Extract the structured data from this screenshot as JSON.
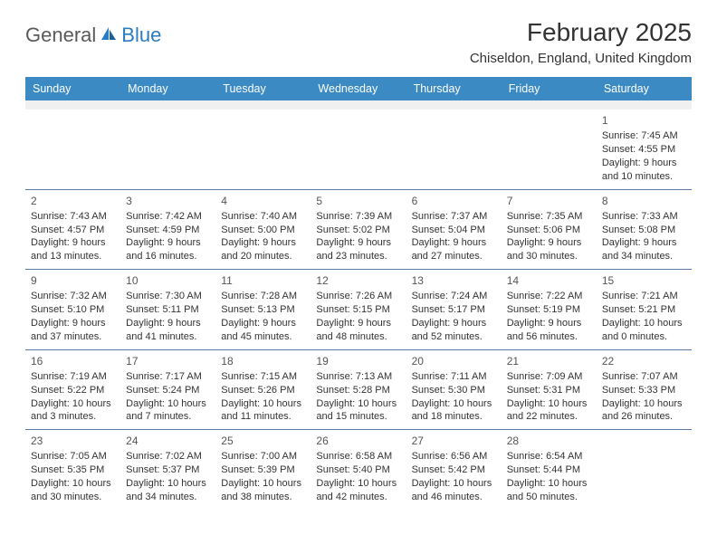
{
  "brand": {
    "word1": "General",
    "word2": "Blue"
  },
  "title": "February 2025",
  "location": "Chiseldon, England, United Kingdom",
  "colors": {
    "header_bg": "#3b8ac4",
    "header_text": "#ffffff",
    "blank_bg": "#f0f0f0",
    "border": "#5a7ca0",
    "logo_gray": "#5a5a5a",
    "logo_blue": "#2b7cc0"
  },
  "day_names": [
    "Sunday",
    "Monday",
    "Tuesday",
    "Wednesday",
    "Thursday",
    "Friday",
    "Saturday"
  ],
  "weeks": [
    [
      null,
      null,
      null,
      null,
      null,
      null,
      {
        "n": "1",
        "sr": "7:45 AM",
        "ss": "4:55 PM",
        "dl": "9 hours and 10 minutes."
      }
    ],
    [
      {
        "n": "2",
        "sr": "7:43 AM",
        "ss": "4:57 PM",
        "dl": "9 hours and 13 minutes."
      },
      {
        "n": "3",
        "sr": "7:42 AM",
        "ss": "4:59 PM",
        "dl": "9 hours and 16 minutes."
      },
      {
        "n": "4",
        "sr": "7:40 AM",
        "ss": "5:00 PM",
        "dl": "9 hours and 20 minutes."
      },
      {
        "n": "5",
        "sr": "7:39 AM",
        "ss": "5:02 PM",
        "dl": "9 hours and 23 minutes."
      },
      {
        "n": "6",
        "sr": "7:37 AM",
        "ss": "5:04 PM",
        "dl": "9 hours and 27 minutes."
      },
      {
        "n": "7",
        "sr": "7:35 AM",
        "ss": "5:06 PM",
        "dl": "9 hours and 30 minutes."
      },
      {
        "n": "8",
        "sr": "7:33 AM",
        "ss": "5:08 PM",
        "dl": "9 hours and 34 minutes."
      }
    ],
    [
      {
        "n": "9",
        "sr": "7:32 AM",
        "ss": "5:10 PM",
        "dl": "9 hours and 37 minutes."
      },
      {
        "n": "10",
        "sr": "7:30 AM",
        "ss": "5:11 PM",
        "dl": "9 hours and 41 minutes."
      },
      {
        "n": "11",
        "sr": "7:28 AM",
        "ss": "5:13 PM",
        "dl": "9 hours and 45 minutes."
      },
      {
        "n": "12",
        "sr": "7:26 AM",
        "ss": "5:15 PM",
        "dl": "9 hours and 48 minutes."
      },
      {
        "n": "13",
        "sr": "7:24 AM",
        "ss": "5:17 PM",
        "dl": "9 hours and 52 minutes."
      },
      {
        "n": "14",
        "sr": "7:22 AM",
        "ss": "5:19 PM",
        "dl": "9 hours and 56 minutes."
      },
      {
        "n": "15",
        "sr": "7:21 AM",
        "ss": "5:21 PM",
        "dl": "10 hours and 0 minutes."
      }
    ],
    [
      {
        "n": "16",
        "sr": "7:19 AM",
        "ss": "5:22 PM",
        "dl": "10 hours and 3 minutes."
      },
      {
        "n": "17",
        "sr": "7:17 AM",
        "ss": "5:24 PM",
        "dl": "10 hours and 7 minutes."
      },
      {
        "n": "18",
        "sr": "7:15 AM",
        "ss": "5:26 PM",
        "dl": "10 hours and 11 minutes."
      },
      {
        "n": "19",
        "sr": "7:13 AM",
        "ss": "5:28 PM",
        "dl": "10 hours and 15 minutes."
      },
      {
        "n": "20",
        "sr": "7:11 AM",
        "ss": "5:30 PM",
        "dl": "10 hours and 18 minutes."
      },
      {
        "n": "21",
        "sr": "7:09 AM",
        "ss": "5:31 PM",
        "dl": "10 hours and 22 minutes."
      },
      {
        "n": "22",
        "sr": "7:07 AM",
        "ss": "5:33 PM",
        "dl": "10 hours and 26 minutes."
      }
    ],
    [
      {
        "n": "23",
        "sr": "7:05 AM",
        "ss": "5:35 PM",
        "dl": "10 hours and 30 minutes."
      },
      {
        "n": "24",
        "sr": "7:02 AM",
        "ss": "5:37 PM",
        "dl": "10 hours and 34 minutes."
      },
      {
        "n": "25",
        "sr": "7:00 AM",
        "ss": "5:39 PM",
        "dl": "10 hours and 38 minutes."
      },
      {
        "n": "26",
        "sr": "6:58 AM",
        "ss": "5:40 PM",
        "dl": "10 hours and 42 minutes."
      },
      {
        "n": "27",
        "sr": "6:56 AM",
        "ss": "5:42 PM",
        "dl": "10 hours and 46 minutes."
      },
      {
        "n": "28",
        "sr": "6:54 AM",
        "ss": "5:44 PM",
        "dl": "10 hours and 50 minutes."
      },
      null
    ]
  ],
  "labels": {
    "sunrise": "Sunrise: ",
    "sunset": "Sunset: ",
    "daylight": "Daylight: "
  }
}
